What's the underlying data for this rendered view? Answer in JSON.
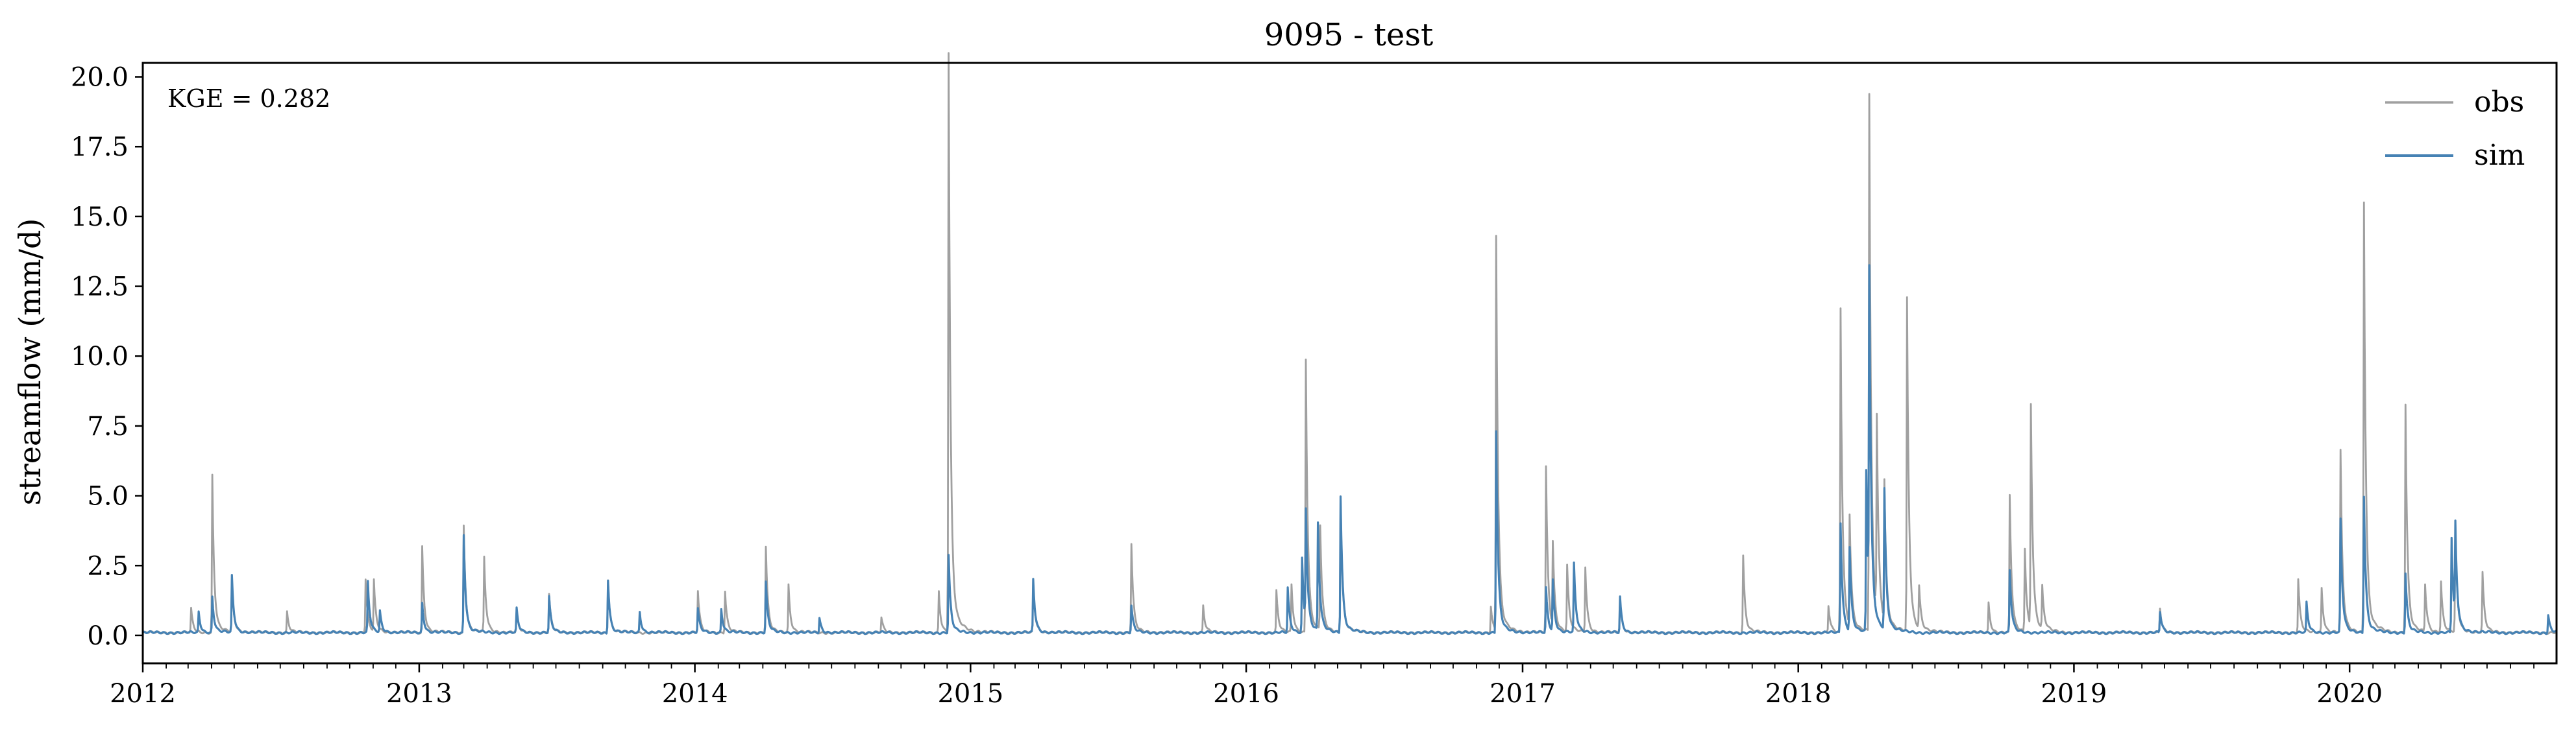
{
  "chart_data": {
    "type": "line",
    "title": "9095 - test",
    "xlabel": "",
    "ylabel": "streamflow (mm/d)",
    "annotation": "KGE = 0.282",
    "xlim": [
      "2012-01-01",
      "2020-10-01"
    ],
    "ylim": [
      -1.0,
      20.5
    ],
    "x_ticks": [
      "2012",
      "2013",
      "2014",
      "2015",
      "2016",
      "2017",
      "2018",
      "2019",
      "2020"
    ],
    "y_ticks": [
      "0.0",
      "2.5",
      "5.0",
      "7.5",
      "10.0",
      "12.5",
      "15.0",
      "17.5",
      "20.0"
    ],
    "y_tick_values": [
      0.0,
      2.5,
      5.0,
      7.5,
      10.0,
      12.5,
      15.0,
      17.5,
      20.0
    ],
    "legend": {
      "position": "top-right",
      "entries": [
        "obs",
        "sim"
      ]
    },
    "grid": false,
    "colors": {
      "obs": "#a0a0a0",
      "sim": "#4682b4"
    },
    "baseline": {
      "obs": 0.1,
      "sim": 0.1
    },
    "series": [
      {
        "name": "obs",
        "color": "#a0a0a0",
        "peaks": [
          [
            "2012-03-05",
            0.9
          ],
          [
            "2012-04-02",
            5.4
          ],
          [
            "2012-04-28",
            1.8
          ],
          [
            "2012-07-10",
            0.8
          ],
          [
            "2012-10-22",
            1.9
          ],
          [
            "2012-11-02",
            1.8
          ],
          [
            "2013-01-05",
            3.0
          ],
          [
            "2013-03-01",
            3.7
          ],
          [
            "2013-03-28",
            2.6
          ],
          [
            "2013-05-10",
            0.8
          ],
          [
            "2013-06-22",
            1.4
          ],
          [
            "2013-09-08",
            1.9
          ],
          [
            "2014-01-05",
            1.5
          ],
          [
            "2014-02-10",
            1.5
          ],
          [
            "2014-04-05",
            3.0
          ],
          [
            "2014-05-05",
            1.7
          ],
          [
            "2014-09-05",
            0.6
          ],
          [
            "2014-11-20",
            1.5
          ],
          [
            "2014-12-03",
            19.6
          ],
          [
            "2015-03-25",
            1.8
          ],
          [
            "2015-08-02",
            3.1
          ],
          [
            "2015-11-05",
            1.0
          ],
          [
            "2016-02-10",
            1.5
          ],
          [
            "2016-03-01",
            1.7
          ],
          [
            "2016-03-20",
            9.3
          ],
          [
            "2016-04-08",
            3.6
          ],
          [
            "2016-05-05",
            4.7
          ],
          [
            "2016-11-20",
            1.0
          ],
          [
            "2016-11-27",
            13.4
          ],
          [
            "2017-02-01",
            5.7
          ],
          [
            "2017-02-10",
            2.9
          ],
          [
            "2017-03-01",
            2.3
          ],
          [
            "2017-03-25",
            2.3
          ],
          [
            "2017-05-10",
            1.2
          ],
          [
            "2017-10-20",
            2.7
          ],
          [
            "2018-02-10",
            1.0
          ],
          [
            "2018-02-26",
            11.0
          ],
          [
            "2018-03-10",
            3.8
          ],
          [
            "2018-04-05",
            18.2
          ],
          [
            "2018-04-15",
            6.7
          ],
          [
            "2018-04-25",
            4.8
          ],
          [
            "2018-05-25",
            11.3
          ],
          [
            "2018-06-10",
            1.5
          ],
          [
            "2018-09-10",
            1.1
          ],
          [
            "2018-10-08",
            4.7
          ],
          [
            "2018-10-28",
            2.9
          ],
          [
            "2018-11-05",
            7.6
          ],
          [
            "2018-11-20",
            1.5
          ],
          [
            "2019-04-25",
            0.9
          ],
          [
            "2019-10-25",
            1.9
          ],
          [
            "2019-11-25",
            1.6
          ],
          [
            "2019-12-20",
            6.2
          ],
          [
            "2020-01-20",
            14.6
          ],
          [
            "2020-03-15",
            7.8
          ],
          [
            "2020-04-10",
            1.7
          ],
          [
            "2020-05-01",
            1.8
          ],
          [
            "2020-05-20",
            3.7
          ],
          [
            "2020-06-25",
            2.1
          ]
        ]
      },
      {
        "name": "sim",
        "color": "#4682b4",
        "peaks": [
          [
            "2012-03-15",
            0.8
          ],
          [
            "2012-04-02",
            1.3
          ],
          [
            "2012-04-28",
            2.0
          ],
          [
            "2012-10-25",
            1.8
          ],
          [
            "2012-11-10",
            0.8
          ],
          [
            "2013-01-05",
            1.1
          ],
          [
            "2013-03-01",
            3.4
          ],
          [
            "2013-05-10",
            0.9
          ],
          [
            "2013-06-22",
            1.3
          ],
          [
            "2013-09-08",
            1.9
          ],
          [
            "2013-10-20",
            0.8
          ],
          [
            "2014-01-05",
            0.9
          ],
          [
            "2014-02-05",
            0.9
          ],
          [
            "2014-04-05",
            1.8
          ],
          [
            "2014-06-15",
            0.6
          ],
          [
            "2014-12-03",
            2.7
          ],
          [
            "2015-03-25",
            1.9
          ],
          [
            "2015-08-02",
            1.0
          ],
          [
            "2016-02-25",
            1.6
          ],
          [
            "2016-03-15",
            2.6
          ],
          [
            "2016-03-20",
            3.9
          ],
          [
            "2016-04-05",
            3.7
          ],
          [
            "2016-05-05",
            4.7
          ],
          [
            "2016-11-27",
            6.9
          ],
          [
            "2017-02-01",
            1.6
          ],
          [
            "2017-02-10",
            1.8
          ],
          [
            "2017-03-10",
            2.4
          ],
          [
            "2017-05-10",
            1.3
          ],
          [
            "2018-02-26",
            3.8
          ],
          [
            "2018-03-10",
            2.9
          ],
          [
            "2018-04-01",
            5.5
          ],
          [
            "2018-04-05",
            11.2
          ],
          [
            "2018-04-25",
            4.8
          ],
          [
            "2018-10-08",
            2.2
          ],
          [
            "2019-04-25",
            0.8
          ],
          [
            "2019-11-05",
            1.1
          ],
          [
            "2019-12-20",
            3.9
          ],
          [
            "2020-01-20",
            4.7
          ],
          [
            "2020-03-15",
            2.1
          ],
          [
            "2020-05-15",
            3.3
          ],
          [
            "2020-05-20",
            3.3
          ],
          [
            "2020-09-20",
            0.7
          ]
        ]
      }
    ]
  }
}
